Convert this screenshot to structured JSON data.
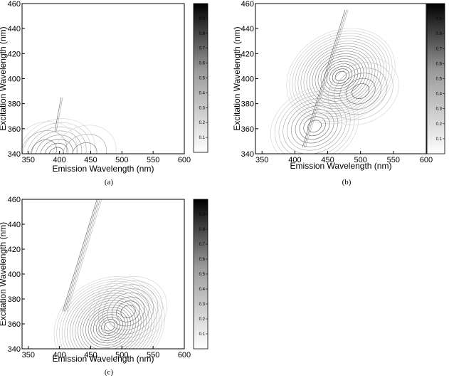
{
  "chart_data": [
    {
      "panel": "a",
      "type": "contour",
      "caption": "(a)",
      "xlabel": "Emission Wavelength (nm)",
      "ylabel": "Excitation Wavelength (nm)",
      "xlim": [
        340,
        600
      ],
      "ylim": [
        340,
        460
      ],
      "xticks": [
        350,
        400,
        450,
        500,
        550,
        600
      ],
      "yticks": [
        340,
        360,
        380,
        400,
        420,
        440,
        460
      ],
      "colorbar": {
        "ticks": [
          0.1,
          0.2,
          0.3,
          0.4,
          0.5,
          0.6,
          0.7,
          0.8,
          0.9
        ]
      },
      "peaks": [
        {
          "em": 395,
          "ex": 340,
          "intensity": 0.15
        },
        {
          "em": 375,
          "ex": 342,
          "intensity": 0.06
        },
        {
          "em": 440,
          "ex": 340,
          "intensity": 0.04
        }
      ],
      "ridges": [
        {
          "from_em": 395,
          "from_ex": 358,
          "to_em": 405,
          "to_ex": 385,
          "intensity": 0.04
        }
      ]
    },
    {
      "panel": "b",
      "type": "contour",
      "caption": "(b)",
      "xlabel": "Emission Wavelength (nm)",
      "ylabel": "Excitation Wavelength (nm)",
      "xlim": [
        340,
        600
      ],
      "ylim": [
        340,
        460
      ],
      "xticks": [
        350,
        400,
        450,
        500,
        550,
        600
      ],
      "yticks": [
        340,
        360,
        380,
        400,
        420,
        440,
        460
      ],
      "colorbar": {
        "ticks": [
          0.1,
          0.2,
          0.3,
          0.4,
          0.5,
          0.6,
          0.7,
          0.8,
          0.9
        ]
      },
      "peaks": [
        {
          "em": 470,
          "ex": 402,
          "intensity": 0.35
        },
        {
          "em": 430,
          "ex": 362,
          "intensity": 0.2
        },
        {
          "em": 500,
          "ex": 390,
          "intensity": 0.12
        }
      ],
      "ridges": [
        {
          "from_em": 415,
          "from_ex": 345,
          "to_em": 480,
          "to_ex": 455,
          "intensity": 0.08
        }
      ]
    },
    {
      "panel": "c",
      "type": "contour",
      "caption": "(c)",
      "xlabel": "Emission Wavelength (nm)",
      "ylabel": "Excitation Wavelength (nm)",
      "xlim": [
        340,
        600
      ],
      "ylim": [
        340,
        460
      ],
      "xticks": [
        350,
        400,
        450,
        500,
        550,
        600
      ],
      "yticks": [
        340,
        360,
        380,
        400,
        420,
        440,
        460
      ],
      "colorbar": {
        "ticks": [
          0.1,
          0.2,
          0.3,
          0.4,
          0.5,
          0.6,
          0.7,
          0.8,
          0.9
        ]
      },
      "peaks": [
        {
          "em": 480,
          "ex": 358,
          "intensity": 0.4
        },
        {
          "em": 510,
          "ex": 370,
          "intensity": 0.15
        }
      ],
      "ridges": [
        {
          "from_em": 410,
          "from_ex": 370,
          "to_em": 465,
          "to_ex": 460,
          "intensity": 0.1
        }
      ]
    }
  ]
}
